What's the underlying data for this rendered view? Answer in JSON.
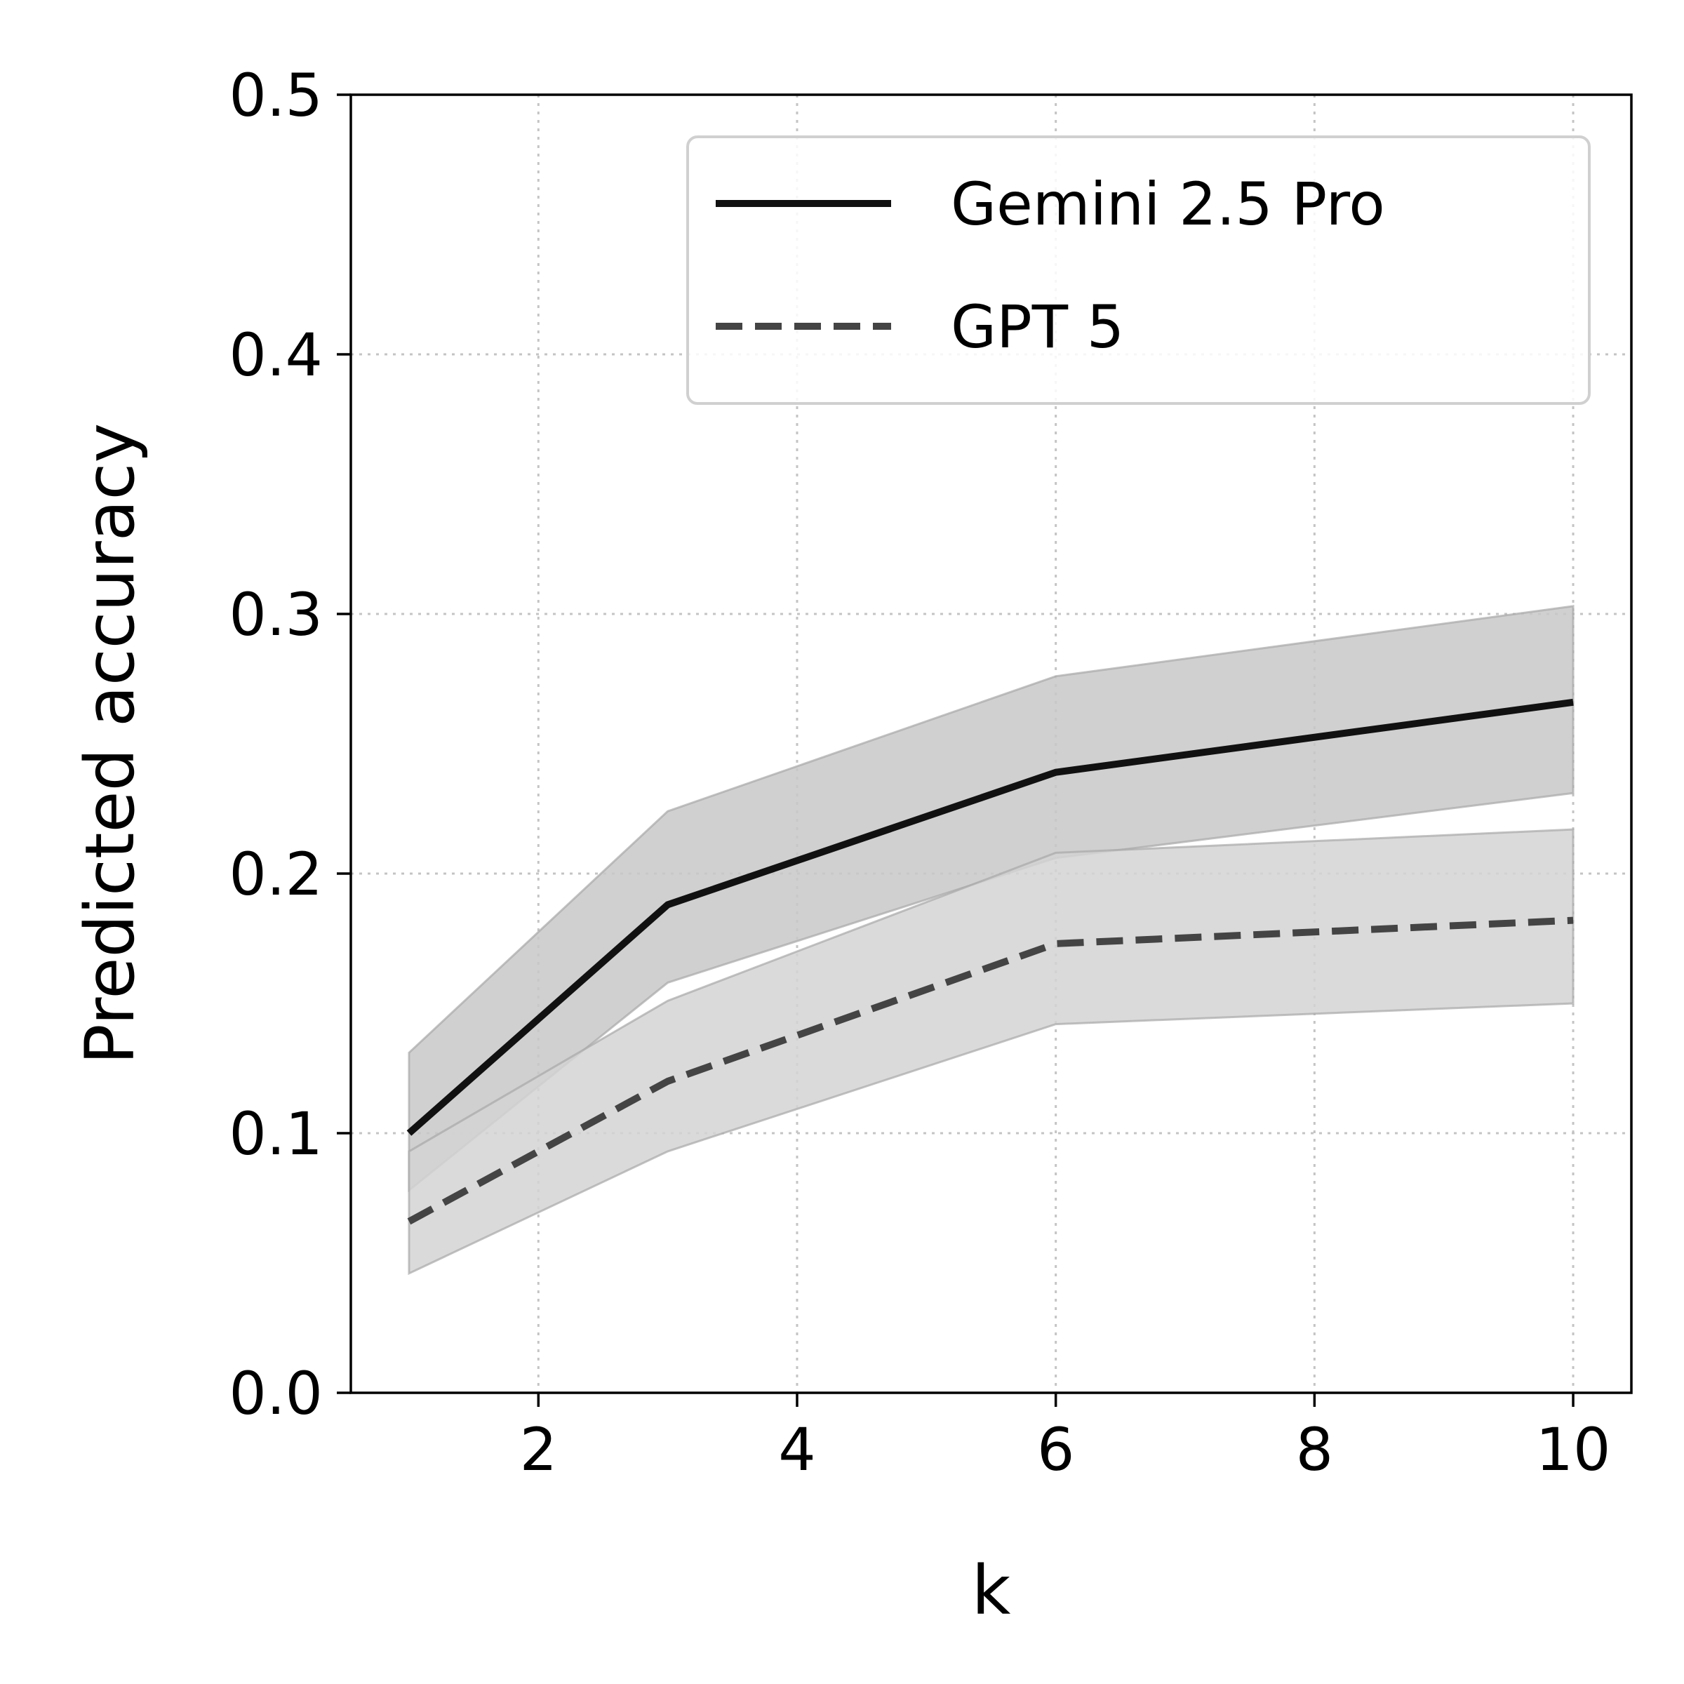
{
  "chart_data": {
    "type": "line",
    "title": "",
    "xlabel": "k",
    "ylabel": "Predicted accuracy",
    "xlim": [
      0.55,
      10.45
    ],
    "ylim": [
      0.0,
      0.5
    ],
    "xticks": [
      2,
      4,
      6,
      8,
      10
    ],
    "xtick_labels": [
      "2",
      "4",
      "6",
      "8",
      "10"
    ],
    "yticks": [
      0.0,
      0.1,
      0.2,
      0.3,
      0.4,
      0.5
    ],
    "ytick_labels": [
      "0.0",
      "0.1",
      "0.2",
      "0.3",
      "0.4",
      "0.5"
    ],
    "grid": true,
    "grid_style": "dotted",
    "legend_position": "top-right",
    "x": [
      1,
      3,
      6,
      10
    ],
    "series": [
      {
        "name": "Gemini 2.5 Pro",
        "values": [
          0.1,
          0.188,
          0.239,
          0.266
        ],
        "lower": [
          0.078,
          0.158,
          0.206,
          0.231
        ],
        "upper": [
          0.131,
          0.224,
          0.276,
          0.303
        ],
        "line_style": "solid",
        "color": "#111111",
        "band_color": "#c8c8c8"
      },
      {
        "name": "GPT 5",
        "values": [
          0.066,
          0.12,
          0.173,
          0.182
        ],
        "lower": [
          0.046,
          0.093,
          0.142,
          0.15
        ],
        "upper": [
          0.093,
          0.151,
          0.208,
          0.217
        ],
        "line_style": "dashed",
        "color": "#444444",
        "band_color": "#d3d3d3"
      }
    ]
  }
}
